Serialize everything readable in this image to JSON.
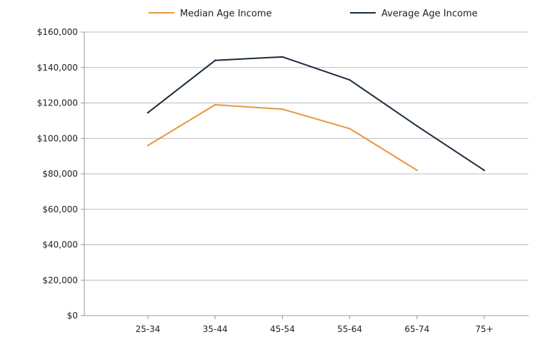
{
  "chart_data": {
    "type": "line",
    "categories": [
      "25-34",
      "35-44",
      "45-54",
      "55-64",
      "65-74",
      "75+"
    ],
    "series": [
      {
        "name": "Median Age Income",
        "color": "#e8953a",
        "values": [
          96000,
          119000,
          116500,
          105500,
          82000,
          null
        ]
      },
      {
        "name": "Average Age Income",
        "color": "#1b2a3d",
        "values": [
          114500,
          144000,
          146000,
          133000,
          107000,
          82000
        ]
      }
    ],
    "yticks": [
      "$0",
      "$20,000",
      "$40,000",
      "$60,000",
      "$80,000",
      "$100,000",
      "$120,000",
      "$140,000",
      "$160,000"
    ],
    "ylim": [
      0,
      160000
    ],
    "grid": true,
    "legend_position": "top"
  }
}
